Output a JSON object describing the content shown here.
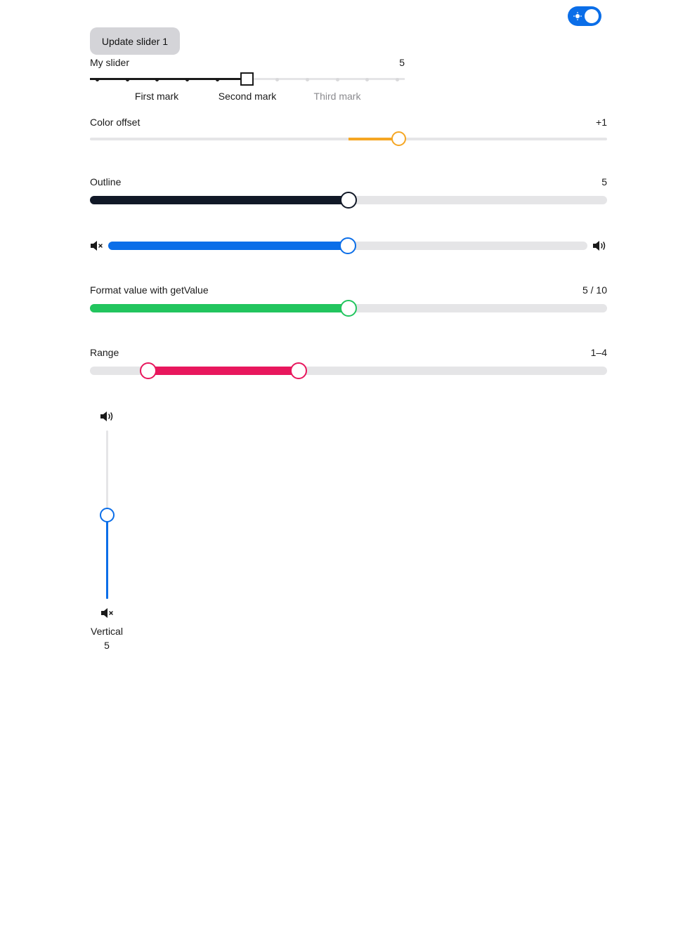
{
  "theme_toggle": {
    "state": "on"
  },
  "update_button": {
    "label": "Update slider 1"
  },
  "my_slider": {
    "label": "My slider",
    "value": "5",
    "value_fraction": 0.5,
    "marks": [
      "First mark",
      "Second mark",
      "Third mark"
    ]
  },
  "color_offset": {
    "label": "Color offset",
    "value": "+1",
    "value_fraction": 0.6,
    "color": "#f5a623"
  },
  "outline": {
    "label": "Outline",
    "value": "5",
    "value_fraction": 0.5,
    "color": "#111827"
  },
  "volume": {
    "value_fraction": 0.5,
    "color": "#0b6ee8",
    "left_icon": "volume-mute-icon",
    "right_icon": "volume-high-icon"
  },
  "format_value": {
    "label": "Format value with getValue",
    "value": "5 / 10",
    "value_fraction": 0.5,
    "color": "#22c55e"
  },
  "range": {
    "label": "Range",
    "value": "1–4",
    "start_fraction": 0.1,
    "end_fraction": 0.4,
    "color": "#e8175d"
  },
  "vertical": {
    "label": "Vertical",
    "value": "5",
    "value_fraction": 0.5,
    "color": "#0b6ee8",
    "top_icon": "volume-high-icon",
    "bottom_icon": "volume-mute-icon"
  }
}
